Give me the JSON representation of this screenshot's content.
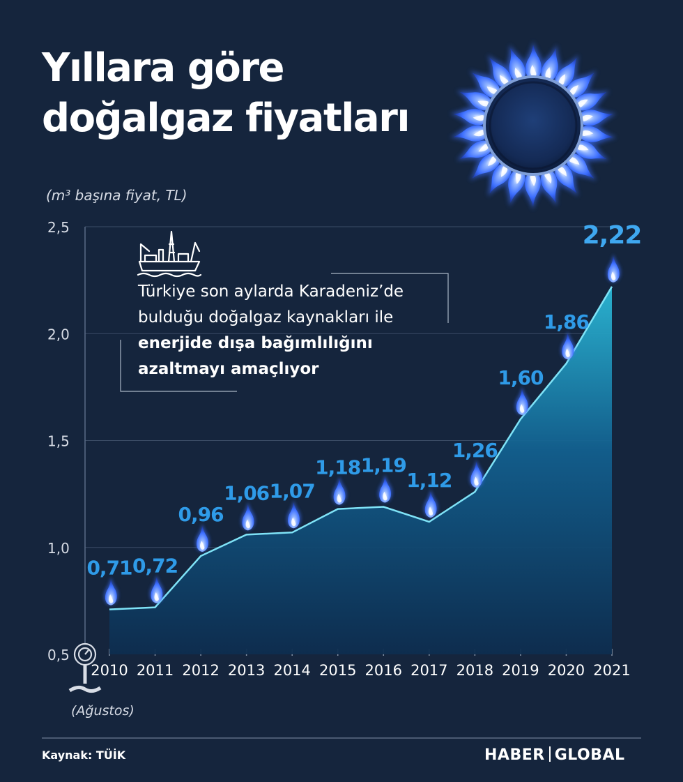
{
  "title_line1": "Yıllara göre",
  "title_line2": "doğalgaz fiyatları",
  "unit_label": "(m³ başına fiyat, TL)",
  "annotation": {
    "text_plain": "Türkiye son aylarda Karadeniz’de bulduğu doğalgaz kaynakları ile",
    "text_bold": "enerjide dışa bağımlılığını azaltmayı amaçlıyor"
  },
  "month_note": "(Ağustos)",
  "source": "Kaynak: TÜİK",
  "brand": {
    "left": "HABER",
    "right": "GLOBAL"
  },
  "colors": {
    "background": "#15253d",
    "line": "#7fe3f7",
    "label": "#2f9be8",
    "flame": "#3d6fff"
  },
  "icons": [
    "gas-burner-icon",
    "drilling-ship-icon",
    "gas-meter-icon",
    "flame-icon"
  ],
  "chart_data": {
    "type": "area",
    "x": [
      "2010",
      "2011",
      "2012",
      "2013",
      "2014",
      "2015",
      "2016",
      "2017",
      "2018",
      "2019",
      "2020",
      "2021"
    ],
    "values": [
      0.71,
      0.72,
      0.96,
      1.06,
      1.07,
      1.18,
      1.19,
      1.12,
      1.26,
      1.6,
      1.86,
      2.22
    ],
    "value_labels": [
      "0,71",
      "0,72",
      "0,96",
      "1,06",
      "1,07",
      "1,18",
      "1,19",
      "1,12",
      "1,26",
      "1,60",
      "1,86",
      "2,22"
    ],
    "ylim": [
      0.5,
      2.5
    ],
    "yticks": [
      0.5,
      1.0,
      1.5,
      2.0,
      2.5
    ],
    "ytick_labels": [
      "0,5",
      "1,0",
      "1,5",
      "2,0",
      "2,5"
    ],
    "grid": true,
    "legend": "none"
  }
}
